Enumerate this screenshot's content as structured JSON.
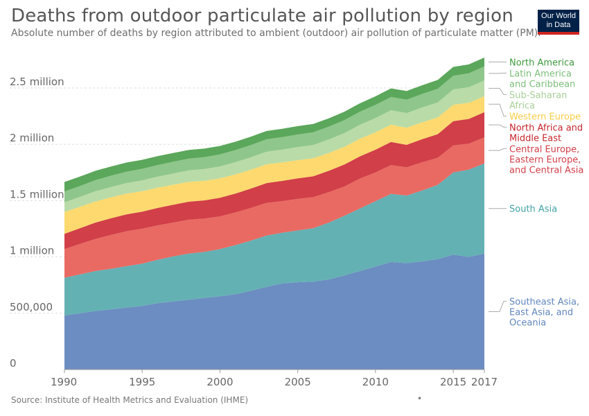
{
  "title": "Deaths from outdoor particulate air pollution by region",
  "subtitle": "Absolute number of deaths by region attributed to ambient (outdoor) air pollution of particulate matter (PM).",
  "logo": {
    "line1": "Our World",
    "line2": "in Data"
  },
  "source": "Source: Institute of Health Metrics and Evaluation (IHME)",
  "footer_dot": "•",
  "chart_data": {
    "type": "area",
    "stacked": true,
    "x": [
      1990,
      1991,
      1992,
      1993,
      1994,
      1995,
      1996,
      1997,
      1998,
      1999,
      2000,
      2001,
      2002,
      2003,
      2004,
      2005,
      2006,
      2007,
      2008,
      2009,
      2010,
      2011,
      2012,
      2013,
      2014,
      2015,
      2016,
      2017
    ],
    "xticks": [
      1990,
      1995,
      2000,
      2005,
      2010,
      2015,
      2017
    ],
    "yticks": [
      0,
      500000,
      1000000,
      1500000,
      2000000,
      2500000
    ],
    "ytick_labels": [
      "0",
      "500,000",
      "1 million",
      "1.5 million",
      "2 million",
      "2.5 million"
    ],
    "ylim": [
      0,
      2850000
    ],
    "grid": true,
    "series": [
      {
        "name": "Southeast Asia, East Asia, and Oceania",
        "label_lines": [
          "Southeast Asia,",
          "East Asia, and",
          "Oceania"
        ],
        "color": "#6c8dc1",
        "values": [
          480000,
          500000,
          520000,
          535000,
          550000,
          565000,
          590000,
          605000,
          620000,
          635000,
          650000,
          670000,
          700000,
          735000,
          765000,
          775000,
          780000,
          800000,
          835000,
          875000,
          915000,
          955000,
          945000,
          960000,
          980000,
          1020000,
          1000000,
          1030000
        ]
      },
      {
        "name": "South Asia",
        "label_lines": [
          "South Asia"
        ],
        "color": "#64b1b4",
        "values": [
          335000,
          345000,
          355000,
          360000,
          368000,
          375000,
          385000,
          400000,
          410000,
          410000,
          420000,
          435000,
          445000,
          455000,
          450000,
          460000,
          475000,
          505000,
          530000,
          555000,
          580000,
          605000,
          600000,
          630000,
          660000,
          730000,
          775000,
          800000
        ]
      },
      {
        "name": "Central Europe, Eastern Europe, and Central Asia",
        "label_lines": [
          "Central Europe,",
          "Eastern Europe,",
          "and Central Asia"
        ],
        "color": "#e96a62",
        "values": [
          255000,
          270000,
          285000,
          300000,
          310000,
          310000,
          305000,
          300000,
          300000,
          295000,
          290000,
          290000,
          290000,
          290000,
          280000,
          280000,
          275000,
          270000,
          260000,
          265000,
          255000,
          255000,
          250000,
          250000,
          240000,
          240000,
          230000,
          230000
        ]
      },
      {
        "name": "North Africa and Middle East",
        "label_lines": [
          "North Africa and",
          "Middle East"
        ],
        "color": "#d13f48",
        "values": [
          135000,
          140000,
          145000,
          148000,
          150000,
          152000,
          155000,
          158000,
          160000,
          162000,
          165000,
          168000,
          172000,
          176000,
          180000,
          182000,
          186000,
          190000,
          195000,
          198000,
          202000,
          205000,
          200000,
          205000,
          210000,
          215000,
          220000,
          225000
        ]
      },
      {
        "name": "Western Europe",
        "label_lines": [
          "Western Europe"
        ],
        "color": "#fdd96f",
        "values": [
          195000,
          190000,
          188000,
          186000,
          184000,
          182000,
          180000,
          178000,
          176000,
          174000,
          172000,
          170000,
          168000,
          166000,
          164000,
          162000,
          160000,
          158000,
          157000,
          156000,
          155000,
          154000,
          152000,
          150000,
          148000,
          146000,
          144000,
          142000
        ]
      },
      {
        "name": "Sub-Saharan Africa",
        "label_lines": [
          "Sub-Saharan",
          "Africa"
        ],
        "color": "#b9dba8",
        "values": [
          85000,
          88000,
          90000,
          92000,
          94000,
          96000,
          98000,
          100000,
          102000,
          104000,
          106000,
          108000,
          110000,
          112000,
          114000,
          116000,
          118000,
          120000,
          122000,
          124000,
          126000,
          128000,
          130000,
          132000,
          134000,
          136000,
          138000,
          140000
        ]
      },
      {
        "name": "Latin America and Caribbean",
        "label_lines": [
          "Latin America",
          "and Caribbean"
        ],
        "color": "#8fc68c",
        "values": [
          95000,
          97000,
          99000,
          100000,
          101000,
          102000,
          103000,
          104000,
          105000,
          106000,
          107000,
          108000,
          109000,
          110000,
          111000,
          112000,
          113000,
          114000,
          115000,
          116000,
          117000,
          118000,
          119000,
          120000,
          121000,
          122000,
          123000,
          124000
        ]
      },
      {
        "name": "North America",
        "label_lines": [
          "North America"
        ],
        "color": "#5ba75b",
        "values": [
          85000,
          84000,
          83000,
          82000,
          81000,
          80000,
          79000,
          78000,
          77000,
          76000,
          75000,
          74000,
          74000,
          74000,
          74000,
          74000,
          74000,
          74000,
          75000,
          75000,
          76000,
          76000,
          77000,
          77000,
          78000,
          78000,
          79000,
          79000
        ]
      }
    ],
    "legend_colors": [
      "#6087bd",
      "#41a2a5",
      "#d13f48",
      "#c5262d",
      "#f8cd4a",
      "#a7cf97",
      "#7dbe7a",
      "#3e9a3e"
    ]
  }
}
